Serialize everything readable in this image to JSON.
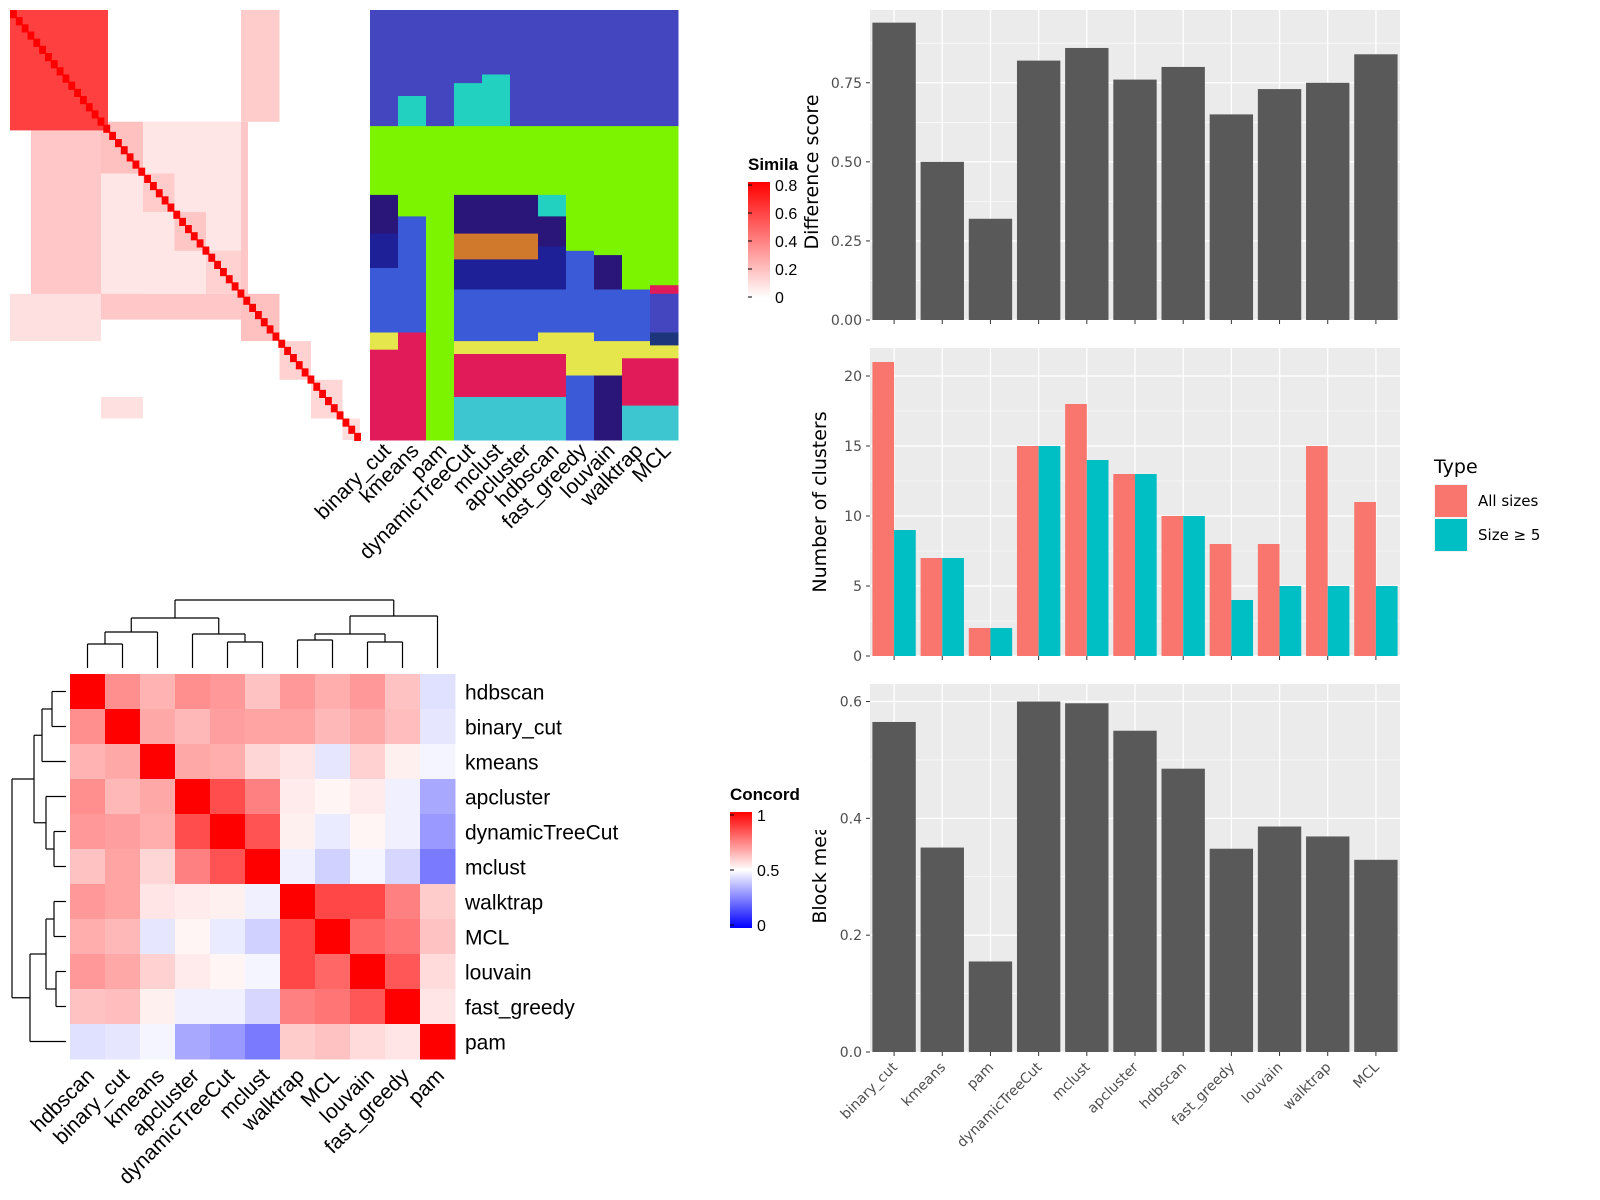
{
  "methods": [
    "binary_cut",
    "kmeans",
    "pam",
    "dynamicTreeCut",
    "mclust",
    "apcluster",
    "hdbscan",
    "fast_greedy",
    "louvain",
    "walktrap",
    "MCL"
  ],
  "colors": {
    "bar_dark": "#595959",
    "panel_bg": "#ebebeb",
    "grid": "#ffffff",
    "all_sizes": "#f8766d",
    "size_ge5": "#00bfc4",
    "heat_red": "#ff0000",
    "heat_blue": "#0000ff"
  },
  "similarity_legend": {
    "title": "Simila",
    "ticks": [
      "0.8",
      "0.6",
      "0.4",
      "0.2",
      "0"
    ]
  },
  "concordance_legend": {
    "title": "Concord",
    "ticks": [
      "1",
      "0.5",
      "0"
    ]
  },
  "concordance": {
    "order": [
      "hdbscan",
      "binary_cut",
      "kmeans",
      "apcluster",
      "dynamicTreeCut",
      "mclust",
      "walktrap",
      "MCL",
      "louvain",
      "fast_greedy",
      "pam"
    ],
    "matrix": [
      [
        1.0,
        0.72,
        0.65,
        0.72,
        0.7,
        0.62,
        0.7,
        0.66,
        0.7,
        0.62,
        0.44
      ],
      [
        0.72,
        1.0,
        0.67,
        0.64,
        0.69,
        0.68,
        0.68,
        0.64,
        0.67,
        0.63,
        0.45
      ],
      [
        0.65,
        0.67,
        1.0,
        0.67,
        0.66,
        0.58,
        0.55,
        0.45,
        0.59,
        0.53,
        0.48
      ],
      [
        0.72,
        0.64,
        0.67,
        1.0,
        0.85,
        0.75,
        0.54,
        0.52,
        0.54,
        0.47,
        0.33
      ],
      [
        0.7,
        0.69,
        0.66,
        0.85,
        1.0,
        0.84,
        0.53,
        0.46,
        0.52,
        0.47,
        0.3
      ],
      [
        0.62,
        0.68,
        0.58,
        0.75,
        0.84,
        1.0,
        0.47,
        0.41,
        0.48,
        0.42,
        0.24
      ],
      [
        0.7,
        0.68,
        0.55,
        0.54,
        0.53,
        0.47,
        1.0,
        0.86,
        0.86,
        0.75,
        0.6
      ],
      [
        0.66,
        0.64,
        0.45,
        0.52,
        0.46,
        0.41,
        0.86,
        1.0,
        0.8,
        0.77,
        0.62
      ],
      [
        0.7,
        0.67,
        0.59,
        0.54,
        0.52,
        0.48,
        0.86,
        0.8,
        1.0,
        0.83,
        0.57
      ],
      [
        0.62,
        0.63,
        0.53,
        0.47,
        0.47,
        0.42,
        0.75,
        0.77,
        0.83,
        1.0,
        0.55
      ],
      [
        0.44,
        0.45,
        0.48,
        0.33,
        0.3,
        0.24,
        0.6,
        0.62,
        0.57,
        0.55,
        1.0
      ]
    ]
  },
  "chart_data": [
    {
      "type": "bar",
      "categories": [
        "binary_cut",
        "kmeans",
        "pam",
        "dynamicTreeCut",
        "mclust",
        "apcluster",
        "hdbscan",
        "fast_greedy",
        "louvain",
        "walktrap",
        "MCL"
      ],
      "values": [
        0.94,
        0.5,
        0.32,
        0.82,
        0.86,
        0.76,
        0.8,
        0.65,
        0.73,
        0.75,
        0.84
      ],
      "ylabel": "Difference score",
      "ylim": [
        0,
        0.98
      ],
      "yticks": [
        "0.00",
        "0.25",
        "0.50",
        "0.75"
      ]
    },
    {
      "type": "bar",
      "categories": [
        "binary_cut",
        "kmeans",
        "pam",
        "dynamicTreeCut",
        "mclust",
        "apcluster",
        "hdbscan",
        "fast_greedy",
        "louvain",
        "walktrap",
        "MCL"
      ],
      "series": [
        {
          "name": "All sizes",
          "values": [
            21,
            7,
            2,
            15,
            18,
            13,
            10,
            8,
            8,
            15,
            11
          ]
        },
        {
          "name": "Size ≥ 5",
          "values": [
            9,
            7,
            2,
            15,
            14,
            13,
            10,
            4,
            5,
            5,
            5
          ]
        }
      ],
      "ylabel": "Number of clusters",
      "ylim": [
        0,
        22
      ],
      "yticks": [
        "0",
        "5",
        "10",
        "15",
        "20"
      ],
      "legend": {
        "title": "Type",
        "position": "right"
      }
    },
    {
      "type": "bar",
      "categories": [
        "binary_cut",
        "kmeans",
        "pam",
        "dynamicTreeCut",
        "mclust",
        "apcluster",
        "hdbscan",
        "fast_greedy",
        "louvain",
        "walktrap",
        "MCL"
      ],
      "values": [
        0.565,
        0.35,
        0.155,
        0.6,
        0.597,
        0.55,
        0.485,
        0.348,
        0.386,
        0.369,
        0.329
      ],
      "ylabel": "Block mean",
      "ylim": [
        0,
        0.63
      ],
      "yticks": [
        "0.0",
        "0.2",
        "0.4",
        "0.6"
      ]
    }
  ]
}
